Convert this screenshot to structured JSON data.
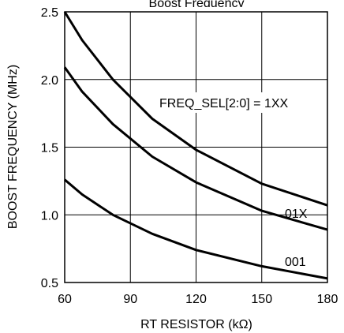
{
  "chart_data": {
    "type": "line",
    "title": "Boost Frequency",
    "xlabel": "RT RESISTOR (kΩ)",
    "ylabel": "BOOST FREQUENCY (MHz)",
    "xlim": [
      60,
      180
    ],
    "ylim": [
      0.5,
      2.5
    ],
    "x_ticks": [
      "60",
      "90",
      "120",
      "150",
      "180"
    ],
    "y_ticks": [
      "0.5",
      "1.0",
      "1.5",
      "2.0",
      "2.5"
    ],
    "grid": true,
    "series": [
      {
        "name": "FREQ_SEL[2:0] = 1XX",
        "x": [
          60,
          68,
          82,
          100,
          120,
          150,
          180
        ],
        "y": [
          2.5,
          2.29,
          2.0,
          1.71,
          1.48,
          1.23,
          1.07
        ]
      },
      {
        "name": "01X",
        "x": [
          60,
          68,
          82,
          100,
          120,
          150,
          180
        ],
        "y": [
          2.09,
          1.91,
          1.67,
          1.43,
          1.24,
          1.03,
          0.89
        ]
      },
      {
        "name": "001",
        "x": [
          60,
          68,
          82,
          100,
          120,
          150,
          180
        ],
        "y": [
          1.26,
          1.15,
          1.0,
          0.86,
          0.74,
          0.62,
          0.53
        ]
      }
    ],
    "annotations": [
      {
        "text": "FREQ_SEL[2:0] = 1XX",
        "series": 0
      },
      {
        "text": "01X",
        "series": 1
      },
      {
        "text": "001",
        "series": 2
      }
    ]
  }
}
